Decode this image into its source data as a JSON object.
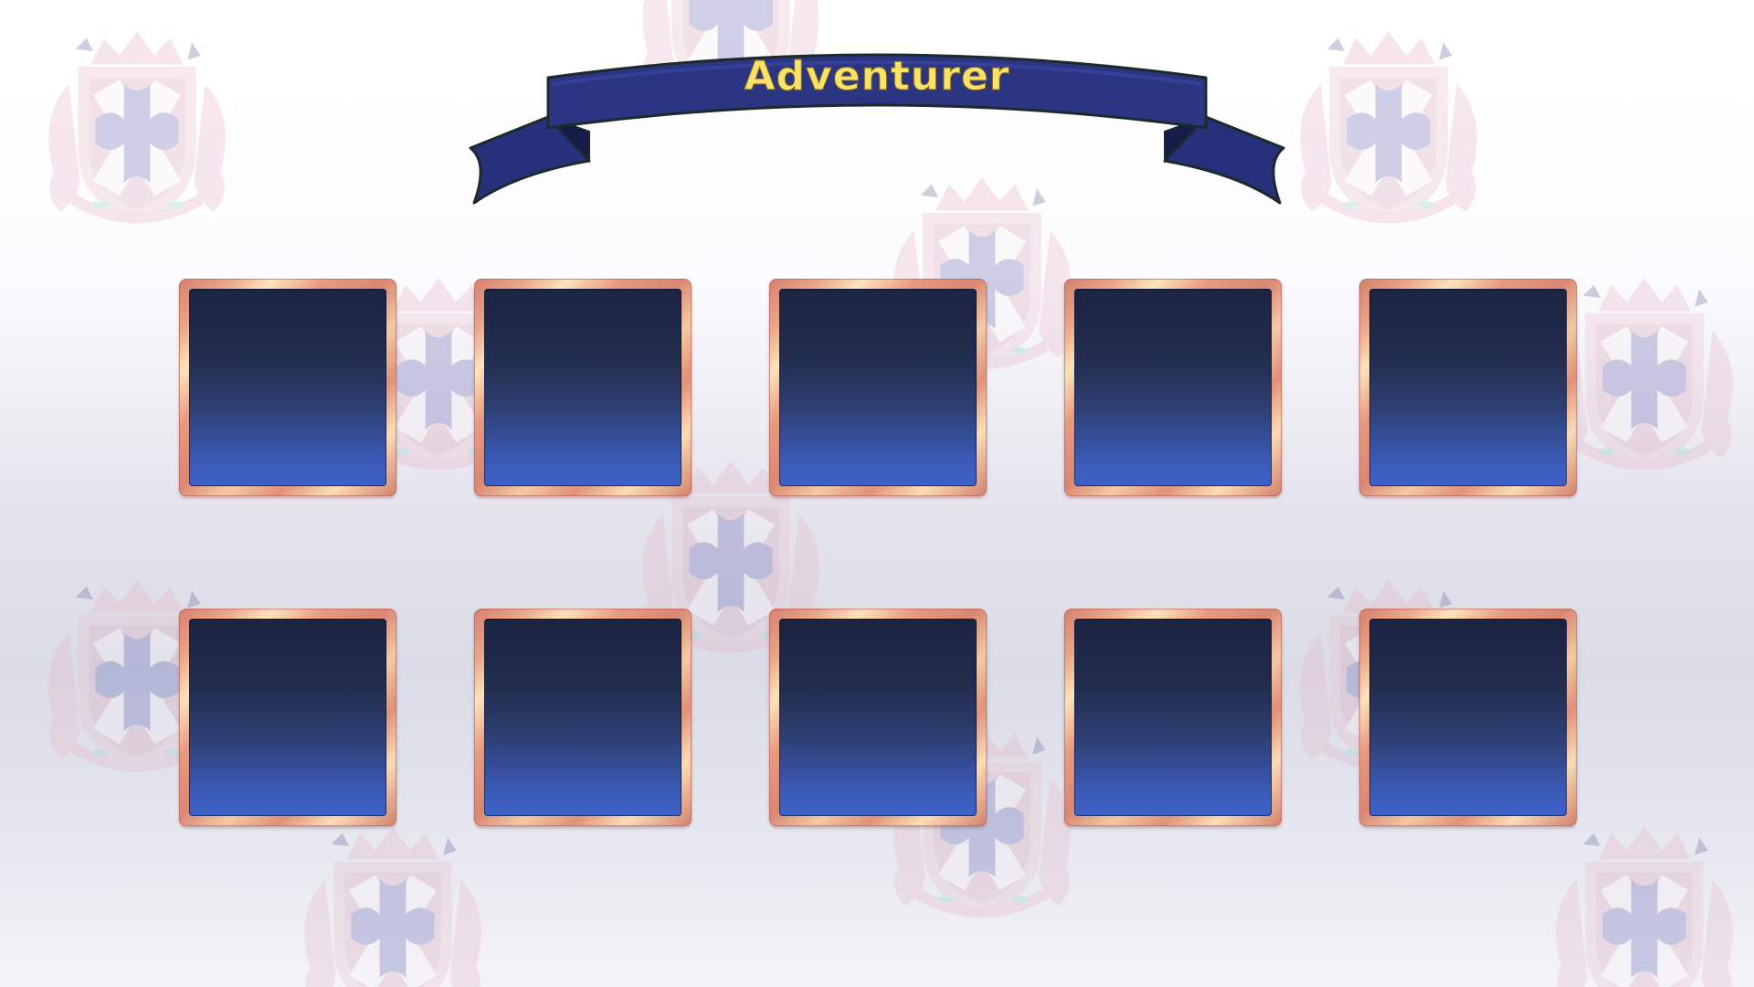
{
  "screen": {
    "title": "Adventurer"
  },
  "slots": [
    {
      "row": 1,
      "col": 1
    },
    {
      "row": 1,
      "col": 2
    },
    {
      "row": 1,
      "col": 3
    },
    {
      "row": 1,
      "col": 4
    },
    {
      "row": 1,
      "col": 5
    },
    {
      "row": 2,
      "col": 1
    },
    {
      "row": 2,
      "col": 2
    },
    {
      "row": 2,
      "col": 3
    },
    {
      "row": 2,
      "col": 4
    },
    {
      "row": 2,
      "col": 5
    }
  ],
  "colors": {
    "banner_fill": "#2a347f",
    "banner_dark": "#1d2458",
    "banner_text": "#f7e36a",
    "slot_frame": "#e29a83",
    "slot_top": "#1b2440",
    "slot_bottom": "#3c62c9",
    "crest_pink": "#e6b6c6",
    "crest_purple": "#6d6fb8"
  },
  "decor": {
    "background_icon": "heraldic-crest-icon",
    "banner_icon": "ribbon-banner-icon"
  }
}
